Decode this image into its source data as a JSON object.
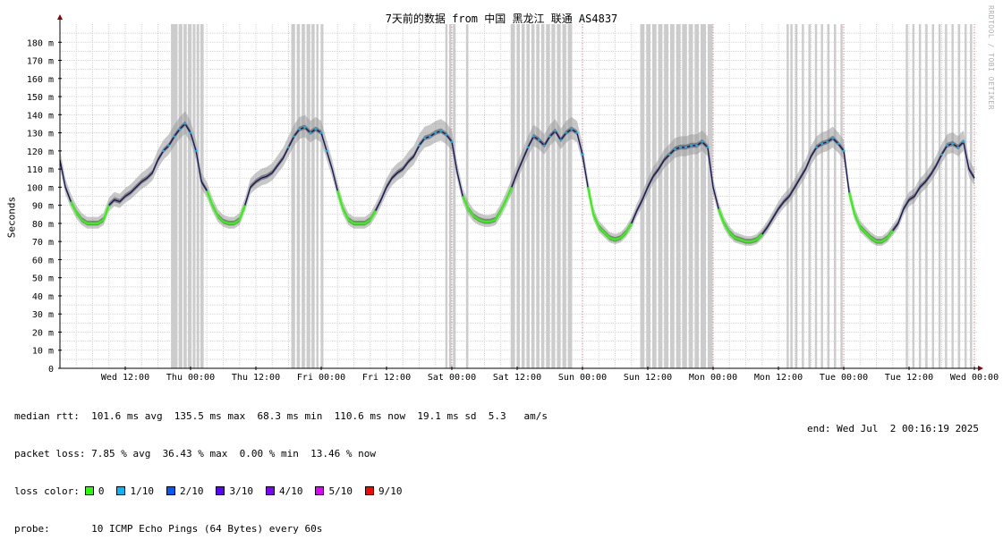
{
  "chart_data": {
    "type": "line",
    "title": "7天前的数据 from 中国 黑龙江 联通 AS4837",
    "ylabel": "Seconds",
    "watermark": "RRDTOOL / TOBI OETIKER",
    "ylim": [
      0,
      190
    ],
    "yticks": [
      {
        "v": 0,
        "label": "0"
      },
      {
        "v": 10,
        "label": "10 m"
      },
      {
        "v": 20,
        "label": "20 m"
      },
      {
        "v": 30,
        "label": "30 m"
      },
      {
        "v": 40,
        "label": "40 m"
      },
      {
        "v": 50,
        "label": "50 m"
      },
      {
        "v": 60,
        "label": "60 m"
      },
      {
        "v": 70,
        "label": "70 m"
      },
      {
        "v": 80,
        "label": "80 m"
      },
      {
        "v": 90,
        "label": "90 m"
      },
      {
        "v": 100,
        "label": "100 m"
      },
      {
        "v": 110,
        "label": "110 m"
      },
      {
        "v": 120,
        "label": "120 m"
      },
      {
        "v": 130,
        "label": "130 m"
      },
      {
        "v": 140,
        "label": "140 m"
      },
      {
        "v": 150,
        "label": "150 m"
      },
      {
        "v": 160,
        "label": "160 m"
      },
      {
        "v": 170,
        "label": "170 m"
      },
      {
        "v": 180,
        "label": "180 m"
      }
    ],
    "xlim_hours": [
      0,
      168
    ],
    "xticks": [
      {
        "h": 12,
        "label": "Wed 12:00",
        "major": false
      },
      {
        "h": 24,
        "label": "Thu 00:00",
        "major": true
      },
      {
        "h": 36,
        "label": "Thu 12:00",
        "major": false
      },
      {
        "h": 48,
        "label": "Fri 00:00",
        "major": true
      },
      {
        "h": 60,
        "label": "Fri 12:00",
        "major": false
      },
      {
        "h": 72,
        "label": "Sat 00:00",
        "major": true
      },
      {
        "h": 84,
        "label": "Sat 12:00",
        "major": false
      },
      {
        "h": 96,
        "label": "Sun 00:00",
        "major": true
      },
      {
        "h": 108,
        "label": "Sun 12:00",
        "major": false
      },
      {
        "h": 120,
        "label": "Mon 00:00",
        "major": true
      },
      {
        "h": 132,
        "label": "Mon 12:00",
        "major": false
      },
      {
        "h": 144,
        "label": "Tue 00:00",
        "major": true
      },
      {
        "h": 156,
        "label": "Tue 12:00",
        "major": false
      },
      {
        "h": 168,
        "label": "Wed 00:00",
        "major": true
      }
    ],
    "median_rtt_points": [
      [
        0,
        115
      ],
      [
        1,
        100
      ],
      [
        2,
        92
      ],
      [
        3,
        86
      ],
      [
        4,
        82
      ],
      [
        5,
        80
      ],
      [
        6,
        80
      ],
      [
        7,
        80
      ],
      [
        8,
        82
      ],
      [
        9,
        90
      ],
      [
        10,
        93
      ],
      [
        11,
        92
      ],
      [
        12,
        95
      ],
      [
        13,
        97
      ],
      [
        14,
        100
      ],
      [
        15,
        103
      ],
      [
        16,
        105
      ],
      [
        17,
        108
      ],
      [
        18,
        115
      ],
      [
        19,
        120
      ],
      [
        20,
        123
      ],
      [
        21,
        128
      ],
      [
        22,
        132
      ],
      [
        23,
        135
      ],
      [
        24,
        130
      ],
      [
        25,
        120
      ],
      [
        26,
        103
      ],
      [
        27,
        98
      ],
      [
        28,
        90
      ],
      [
        29,
        84
      ],
      [
        30,
        81
      ],
      [
        31,
        80
      ],
      [
        32,
        80
      ],
      [
        33,
        82
      ],
      [
        34,
        90
      ],
      [
        35,
        100
      ],
      [
        36,
        103
      ],
      [
        37,
        105
      ],
      [
        38,
        106
      ],
      [
        39,
        108
      ],
      [
        40,
        112
      ],
      [
        41,
        116
      ],
      [
        42,
        122
      ],
      [
        43,
        128
      ],
      [
        44,
        132
      ],
      [
        45,
        133
      ],
      [
        46,
        130
      ],
      [
        47,
        132
      ],
      [
        48,
        130
      ],
      [
        49,
        120
      ],
      [
        50,
        110
      ],
      [
        51,
        98
      ],
      [
        52,
        88
      ],
      [
        53,
        82
      ],
      [
        54,
        80
      ],
      [
        55,
        80
      ],
      [
        56,
        80
      ],
      [
        57,
        82
      ],
      [
        58,
        87
      ],
      [
        59,
        93
      ],
      [
        60,
        100
      ],
      [
        61,
        105
      ],
      [
        62,
        108
      ],
      [
        63,
        110
      ],
      [
        64,
        114
      ],
      [
        65,
        117
      ],
      [
        66,
        123
      ],
      [
        67,
        127
      ],
      [
        68,
        128
      ],
      [
        69,
        130
      ],
      [
        70,
        131
      ],
      [
        71,
        129
      ],
      [
        72,
        125
      ],
      [
        73,
        108
      ],
      [
        74,
        95
      ],
      [
        75,
        88
      ],
      [
        76,
        84
      ],
      [
        77,
        82
      ],
      [
        78,
        81
      ],
      [
        79,
        81
      ],
      [
        80,
        82
      ],
      [
        81,
        87
      ],
      [
        82,
        93
      ],
      [
        83,
        100
      ],
      [
        84,
        108
      ],
      [
        85,
        115
      ],
      [
        86,
        122
      ],
      [
        87,
        128
      ],
      [
        88,
        126
      ],
      [
        89,
        123
      ],
      [
        90,
        128
      ],
      [
        91,
        131
      ],
      [
        92,
        126
      ],
      [
        93,
        130
      ],
      [
        94,
        132
      ],
      [
        95,
        130
      ],
      [
        96,
        118
      ],
      [
        97,
        100
      ],
      [
        98,
        85
      ],
      [
        99,
        78
      ],
      [
        100,
        75
      ],
      [
        101,
        72
      ],
      [
        102,
        71
      ],
      [
        103,
        72
      ],
      [
        104,
        75
      ],
      [
        105,
        80
      ],
      [
        106,
        87
      ],
      [
        107,
        93
      ],
      [
        108,
        100
      ],
      [
        109,
        106
      ],
      [
        110,
        110
      ],
      [
        111,
        115
      ],
      [
        112,
        118
      ],
      [
        113,
        121
      ],
      [
        114,
        122
      ],
      [
        115,
        122
      ],
      [
        116,
        123
      ],
      [
        117,
        123
      ],
      [
        118,
        125
      ],
      [
        119,
        122
      ],
      [
        120,
        100
      ],
      [
        121,
        88
      ],
      [
        122,
        80
      ],
      [
        123,
        75
      ],
      [
        124,
        72
      ],
      [
        125,
        71
      ],
      [
        126,
        70
      ],
      [
        127,
        70
      ],
      [
        128,
        71
      ],
      [
        129,
        74
      ],
      [
        130,
        78
      ],
      [
        131,
        83
      ],
      [
        132,
        88
      ],
      [
        133,
        92
      ],
      [
        134,
        95
      ],
      [
        135,
        100
      ],
      [
        136,
        105
      ],
      [
        137,
        110
      ],
      [
        138,
        117
      ],
      [
        139,
        122
      ],
      [
        140,
        124
      ],
      [
        141,
        125
      ],
      [
        142,
        127
      ],
      [
        143,
        124
      ],
      [
        144,
        120
      ],
      [
        145,
        97
      ],
      [
        146,
        85
      ],
      [
        147,
        78
      ],
      [
        148,
        75
      ],
      [
        149,
        72
      ],
      [
        150,
        70
      ],
      [
        151,
        70
      ],
      [
        152,
        72
      ],
      [
        153,
        76
      ],
      [
        154,
        80
      ],
      [
        155,
        88
      ],
      [
        156,
        93
      ],
      [
        157,
        95
      ],
      [
        158,
        100
      ],
      [
        159,
        103
      ],
      [
        160,
        107
      ],
      [
        161,
        112
      ],
      [
        162,
        118
      ],
      [
        163,
        123
      ],
      [
        164,
        124
      ],
      [
        165,
        122
      ],
      [
        166,
        125
      ],
      [
        167,
        110
      ],
      [
        168,
        105
      ]
    ],
    "loss_bands": [
      [
        20.4,
        21.6
      ],
      [
        21.8,
        22.5
      ],
      [
        22.7,
        23.3
      ],
      [
        23.5,
        24.2
      ],
      [
        24.4,
        24.9
      ],
      [
        25.1,
        25.6
      ],
      [
        25.8,
        26.4
      ],
      [
        42.5,
        43.2
      ],
      [
        43.5,
        44.1
      ],
      [
        44.4,
        45.0
      ],
      [
        45.3,
        46.0
      ],
      [
        46.2,
        46.8
      ],
      [
        47.1,
        47.5
      ],
      [
        47.9,
        48.4
      ],
      [
        70.8,
        71.2
      ],
      [
        71.5,
        71.9
      ],
      [
        72.2,
        72.7
      ],
      [
        74.6,
        75.0
      ],
      [
        82.8,
        83.6
      ],
      [
        83.9,
        84.5
      ],
      [
        84.8,
        85.4
      ],
      [
        85.7,
        86.3
      ],
      [
        86.6,
        87.2
      ],
      [
        87.5,
        88.1
      ],
      [
        88.4,
        89.0
      ],
      [
        89.3,
        90.0
      ],
      [
        90.3,
        91.0
      ],
      [
        91.3,
        92.0
      ],
      [
        92.3,
        93.0
      ],
      [
        93.3,
        94.1
      ],
      [
        106.6,
        107.4
      ],
      [
        107.7,
        108.5
      ],
      [
        108.8,
        109.6
      ],
      [
        109.9,
        110.7
      ],
      [
        111.0,
        111.8
      ],
      [
        112.1,
        112.9
      ],
      [
        113.2,
        114.0
      ],
      [
        114.3,
        115.2
      ],
      [
        115.5,
        116.3
      ],
      [
        116.6,
        117.4
      ],
      [
        117.7,
        118.7
      ],
      [
        119.0,
        119.9
      ],
      [
        133.5,
        133.9
      ],
      [
        134.2,
        134.6
      ],
      [
        135.1,
        135.5
      ],
      [
        136.3,
        136.7
      ],
      [
        137.5,
        137.9
      ],
      [
        138.7,
        139.1
      ],
      [
        139.8,
        140.2
      ],
      [
        141.0,
        141.4
      ],
      [
        142.2,
        142.6
      ],
      [
        143.4,
        143.8
      ],
      [
        155.4,
        155.8
      ],
      [
        156.6,
        157.0
      ],
      [
        157.8,
        158.2
      ],
      [
        159.0,
        159.4
      ],
      [
        160.2,
        160.6
      ],
      [
        161.4,
        161.8
      ],
      [
        162.6,
        163.0
      ],
      [
        163.8,
        164.2
      ],
      [
        165.0,
        165.4
      ],
      [
        166.2,
        166.6
      ],
      [
        167.2,
        167.6
      ]
    ],
    "green_ranges": [
      [
        2,
        9
      ],
      [
        27,
        34
      ],
      [
        51,
        58
      ],
      [
        74,
        83
      ],
      [
        97,
        105
      ],
      [
        121,
        129
      ],
      [
        145,
        153
      ]
    ]
  },
  "stats": {
    "median_rtt": "median rtt:  101.6 ms avg  135.5 ms max  68.3 ms min  110.6 ms now  19.1 ms sd  5.3   am/s",
    "packet_loss": "packet loss: 7.85 % avg  36.43 % max  0.00 % min  13.46 % now",
    "loss_color_label": "loss color:",
    "probe": "probe:       10 ICMP Echo Pings (64 Bytes) every 60s",
    "end": "end: Wed Jul  2 00:16:19 2025"
  },
  "legend": [
    {
      "label": "0",
      "color": "#26ff00"
    },
    {
      "label": "1/10",
      "color": "#00b8ff"
    },
    {
      "label": "2/10",
      "color": "#0059ff"
    },
    {
      "label": "3/10",
      "color": "#5e00ff"
    },
    {
      "label": "4/10",
      "color": "#7e00ff"
    },
    {
      "label": "5/10",
      "color": "#dd00ff"
    },
    {
      "label": "9/10",
      "color": "#ff0000"
    }
  ]
}
